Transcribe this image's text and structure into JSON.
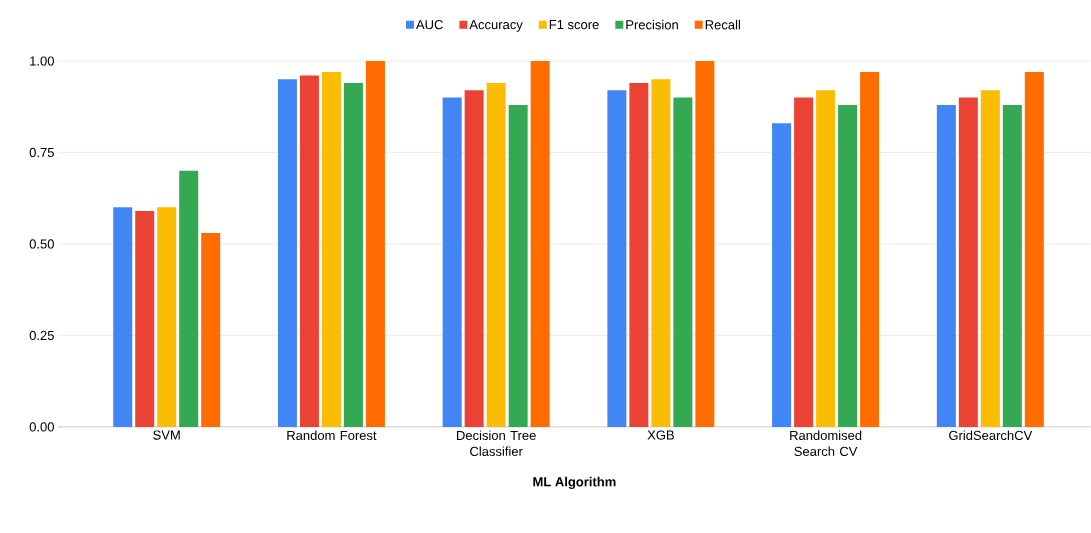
{
  "chart_data": {
    "type": "bar",
    "xlabel": "ML Algorithm",
    "categories": [
      "SVM",
      "Random Forest",
      "Decision Tree Classifier",
      "XGB",
      "Randomised Search CV",
      "GridSearchCV"
    ],
    "series": [
      {
        "name": "AUC",
        "color": "#4285f4",
        "values": [
          0.6,
          0.95,
          0.9,
          0.92,
          0.83,
          0.88
        ]
      },
      {
        "name": "Accuracy",
        "color": "#ea4335",
        "values": [
          0.59,
          0.96,
          0.92,
          0.94,
          0.9,
          0.9
        ]
      },
      {
        "name": "F1 score",
        "color": "#fbbc04",
        "values": [
          0.6,
          0.97,
          0.94,
          0.95,
          0.92,
          0.92
        ]
      },
      {
        "name": "Precision",
        "color": "#34a853",
        "values": [
          0.7,
          0.94,
          0.88,
          0.9,
          0.88,
          0.88
        ]
      },
      {
        "name": "Recall",
        "color": "#ff6d01",
        "values": [
          0.53,
          1.0,
          1.0,
          1.0,
          0.97,
          0.97
        ]
      }
    ],
    "ylim": [
      0,
      1.0
    ],
    "yticks": [
      {
        "value": 0,
        "label": "0.00"
      },
      {
        "value": 0.25,
        "label": "0.25"
      },
      {
        "value": 0.5,
        "label": "0.50"
      },
      {
        "value": 0.75,
        "label": "0.75"
      },
      {
        "value": 1.0,
        "label": "1.00"
      }
    ],
    "grid": "y",
    "legend": "top"
  }
}
